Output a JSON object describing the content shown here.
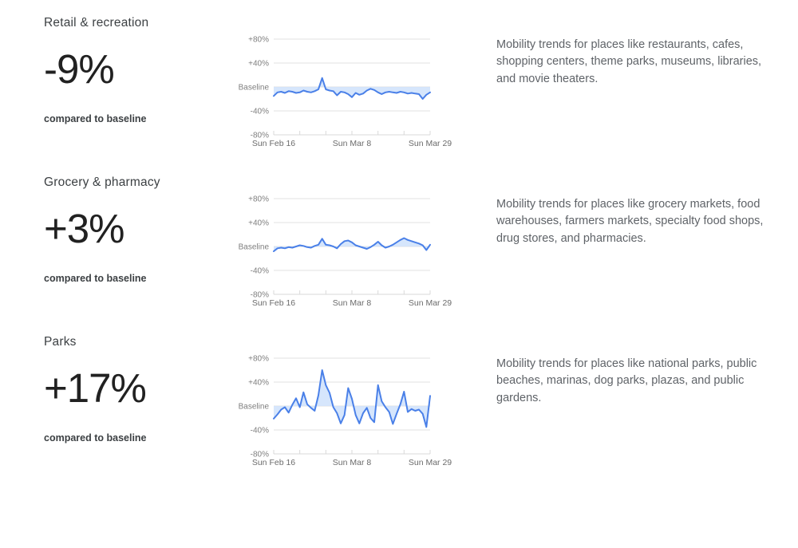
{
  "page": {
    "background": "#ffffff"
  },
  "sections": [
    {
      "title": "Retail & recreation",
      "headline": "-9%",
      "caption": "compared to baseline",
      "description": "Mobility trends for places like restaurants, cafes, shopping centers, theme parks, museums, libraries, and movie theaters."
    },
    {
      "title": "Grocery & pharmacy",
      "headline": "+3%",
      "caption": "compared to baseline",
      "description": "Mobility trends for places like grocery markets, food warehouses, farmers markets, specialty food shops, drug stores, and pharmacies."
    },
    {
      "title": "Parks",
      "headline": "+17%",
      "caption": "compared to baseline",
      "description": "Mobility trends for places like national parks, public beaches, marinas, dog parks, plazas, and public gardens."
    }
  ],
  "chart_data": [
    {
      "type": "area",
      "title": "Retail & recreation mobility vs baseline",
      "y_tick_labels": [
        "+80%",
        "+40%",
        "Baseline",
        "-40%",
        "-80%"
      ],
      "y_tick_values": [
        80,
        40,
        0,
        -40,
        -80
      ],
      "ylim": [
        -80,
        80
      ],
      "baseline": 0,
      "x_tick_labels": [
        "Sun Feb 16",
        "Sun Mar 8",
        "Sun Mar 29"
      ],
      "x_tick_positions": [
        0,
        21,
        42
      ],
      "x_minor_tick_positions": [
        0,
        7,
        14,
        21,
        28,
        35,
        42
      ],
      "values": [
        -15,
        -9,
        -8,
        -10,
        -7,
        -8,
        -10,
        -9,
        -6,
        -8,
        -9,
        -7,
        -4,
        15,
        -4,
        -6,
        -7,
        -14,
        -8,
        -9,
        -12,
        -17,
        -10,
        -13,
        -11,
        -6,
        -3,
        -5,
        -9,
        -12,
        -9,
        -8,
        -9,
        -10,
        -8,
        -9,
        -11,
        -10,
        -11,
        -12,
        -20,
        -13,
        -9
      ],
      "line_color": "#4a80e8",
      "fill_color": "#d2e3fc",
      "grid_color": "#e2e2e2",
      "axis_color": "#d9d9d9",
      "ylabel_color": "#7e7e7e",
      "xlabel_color": "#6b6b6b"
    },
    {
      "type": "area",
      "title": "Grocery & pharmacy mobility vs baseline",
      "y_tick_labels": [
        "+80%",
        "+40%",
        "Baseline",
        "-40%",
        "-80%"
      ],
      "y_tick_values": [
        80,
        40,
        0,
        -40,
        -80
      ],
      "ylim": [
        -80,
        80
      ],
      "baseline": 0,
      "x_tick_labels": [
        "Sun Feb 16",
        "Sun Mar 8",
        "Sun Mar 29"
      ],
      "x_tick_positions": [
        0,
        21,
        42
      ],
      "x_minor_tick_positions": [
        0,
        7,
        14,
        21,
        28,
        35,
        42
      ],
      "values": [
        -8,
        -3,
        -2,
        -3,
        -1,
        -2,
        0,
        2,
        1,
        -1,
        -2,
        1,
        3,
        13,
        3,
        2,
        0,
        -3,
        4,
        9,
        10,
        7,
        2,
        0,
        -2,
        -4,
        -1,
        3,
        8,
        2,
        -2,
        0,
        3,
        7,
        11,
        14,
        11,
        9,
        7,
        5,
        2,
        -6,
        3
      ],
      "line_color": "#4a80e8",
      "fill_color": "#d2e3fc",
      "grid_color": "#e2e2e2",
      "axis_color": "#d9d9d9",
      "ylabel_color": "#7e7e7e",
      "xlabel_color": "#6b6b6b"
    },
    {
      "type": "area",
      "title": "Parks mobility vs baseline",
      "y_tick_labels": [
        "+80%",
        "+40%",
        "Baseline",
        "-40%",
        "-80%"
      ],
      "y_tick_values": [
        80,
        40,
        0,
        -40,
        -80
      ],
      "ylim": [
        -80,
        80
      ],
      "baseline": 0,
      "x_tick_labels": [
        "Sun Feb 16",
        "Sun Mar 8",
        "Sun Mar 29"
      ],
      "x_tick_positions": [
        0,
        21,
        42
      ],
      "x_minor_tick_positions": [
        0,
        7,
        14,
        21,
        28,
        35,
        42
      ],
      "values": [
        -21,
        -14,
        -6,
        -2,
        -11,
        2,
        13,
        -2,
        23,
        3,
        -3,
        -8,
        18,
        60,
        35,
        22,
        -2,
        -12,
        -29,
        -15,
        30,
        12,
        -15,
        -29,
        -12,
        -3,
        -20,
        -27,
        35,
        8,
        -2,
        -10,
        -30,
        -13,
        3,
        24,
        -10,
        -5,
        -8,
        -6,
        -13,
        -35,
        17
      ],
      "line_color": "#4a80e8",
      "fill_color": "#d2e3fc",
      "grid_color": "#e2e2e2",
      "axis_color": "#d9d9d9",
      "ylabel_color": "#7e7e7e",
      "xlabel_color": "#6b6b6b"
    }
  ]
}
